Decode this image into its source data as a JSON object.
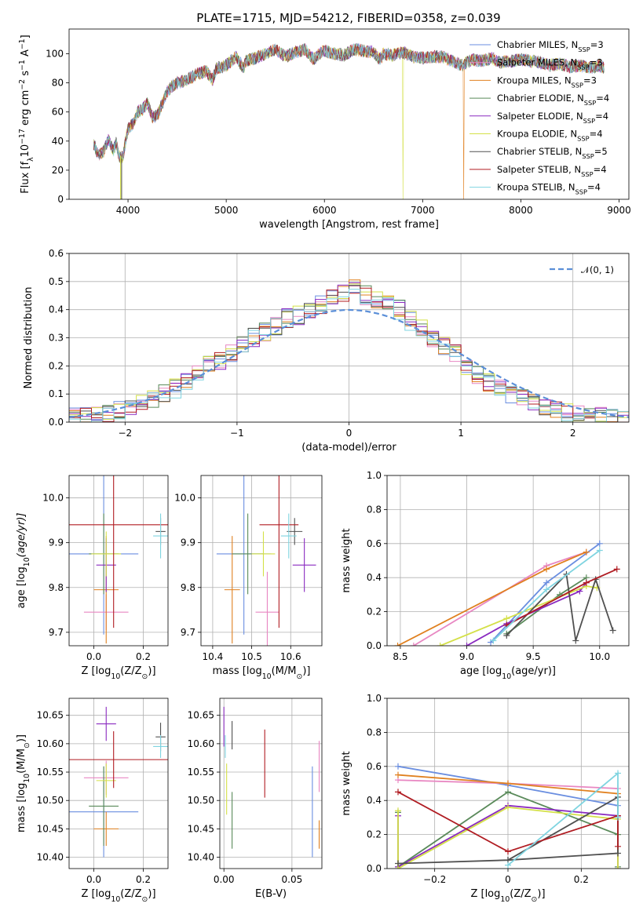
{
  "figure": {
    "title": "PLATE=1715, MJD=54212, FIBERID=0358, z=0.039"
  },
  "colors": {
    "Chabrier MILES": "#6a8ee0",
    "Salpeter MILES": "#e887c2",
    "Kroupa MILES": "#e0801f",
    "Chabrier ELODIE": "#5a8a5a",
    "Salpeter ELODIE": "#8a2ac0",
    "Kroupa ELODIE": "#d4e048",
    "Chabrier STELIB": "#505050",
    "Salpeter STELIB": "#b01c22",
    "Kroupa STELIB": "#7fd4e0"
  },
  "chart_data": [
    {
      "id": "spectrum",
      "type": "line",
      "title": "PLATE=1715, MJD=54212, FIBERID=0358, z=0.039",
      "xlabel": "wavelength [Angstrom, rest frame]",
      "ylabel_parts": [
        "Flux [f",
        "λ",
        "10",
        "−17",
        " erg cm",
        "−2",
        " s",
        "−1",
        " A",
        "−1",
        "]"
      ],
      "xlim": [
        3400,
        9100
      ],
      "ylim": [
        0,
        117
      ],
      "xticks": [
        4000,
        5000,
        6000,
        7000,
        8000,
        9000
      ],
      "yticks": [
        0,
        20,
        40,
        60,
        80,
        100
      ],
      "legend_position": "upper right",
      "x": [
        3650,
        3700,
        3760,
        3800,
        3850,
        3880,
        3900,
        3920,
        3950,
        3980,
        4000,
        4050,
        4100,
        4150,
        4200,
        4250,
        4300,
        4350,
        4400,
        4450,
        4500,
        4600,
        4700,
        4800,
        4860,
        4900,
        5000,
        5100,
        5175,
        5200,
        5300,
        5400,
        5500,
        5600,
        5700,
        5800,
        5890,
        5950,
        6000,
        6100,
        6200,
        6300,
        6400,
        6500,
        6563,
        6600,
        6700,
        6800,
        6900,
        7000,
        7100,
        7200,
        7300,
        7400,
        7500,
        7600,
        7700,
        7800,
        7900,
        8000,
        8100,
        8200,
        8300,
        8400,
        8500,
        8600,
        8700,
        8800,
        8850
      ],
      "y": [
        38,
        30,
        34,
        42,
        33,
        39,
        32,
        28,
        30,
        42,
        48,
        52,
        60,
        62,
        66,
        56,
        58,
        66,
        74,
        78,
        80,
        82,
        86,
        88,
        82,
        90,
        92,
        98,
        90,
        95,
        97,
        100,
        103,
        98,
        101,
        103,
        96,
        100,
        102,
        100,
        99,
        103,
        102,
        101,
        96,
        100,
        99,
        101,
        98,
        97,
        98,
        98,
        95,
        92,
        96,
        95,
        97,
        94,
        95,
        96,
        95,
        94,
        92,
        93,
        91,
        92,
        90,
        92,
        90
      ],
      "series": [
        {
          "name_parts": [
            "Chabrier MILES, N",
            "SSP",
            "=3"
          ],
          "color": "#6a8ee0"
        },
        {
          "name_parts": [
            "Salpeter MILES, N",
            "SSP",
            "=3"
          ],
          "color": "#e887c2"
        },
        {
          "name_parts": [
            "Kroupa MILES, N",
            "SSP",
            "=3"
          ],
          "color": "#e0801f",
          "drop_at": 7420
        },
        {
          "name_parts": [
            "Chabrier ELODIE, N",
            "SSP",
            "=4"
          ],
          "color": "#5a8a5a"
        },
        {
          "name_parts": [
            "Salpeter ELODIE, N",
            "SSP",
            "=4"
          ],
          "color": "#8a2ac0"
        },
        {
          "name_parts": [
            "Kroupa ELODIE, N",
            "SSP",
            "=4"
          ],
          "color": "#d4e048",
          "drop_at": 6800
        },
        {
          "name_parts": [
            "Chabrier STELIB, N",
            "SSP",
            "=5"
          ],
          "color": "#505050"
        },
        {
          "name_parts": [
            "Salpeter STELIB, N",
            "SSP",
            "=4"
          ],
          "color": "#b01c22"
        },
        {
          "name_parts": [
            "Kroupa STELIB, N",
            "SSP",
            "=4"
          ],
          "color": "#7fd4e0"
        }
      ]
    },
    {
      "id": "residuals",
      "type": "line",
      "xlabel": "(data-model)/error",
      "ylabel": "Normed distribution",
      "xlim": [
        -2.5,
        2.5
      ],
      "ylim": [
        0,
        0.6
      ],
      "xticks": [
        -2,
        -1,
        0,
        1,
        2
      ],
      "yticks": [
        0.0,
        0.1,
        0.2,
        0.3,
        0.4,
        0.5,
        0.6
      ],
      "grid": true,
      "legend_position": "upper right",
      "reference": {
        "name": "𝒩(0, 1)",
        "color": "#5b8fd8",
        "mean": 0,
        "sigma": 1
      },
      "bin_width": 0.1,
      "bin_start": -2.5,
      "hist_values": [
        0.02,
        0.02,
        0.03,
        0.035,
        0.045,
        0.06,
        0.07,
        0.085,
        0.1,
        0.12,
        0.15,
        0.18,
        0.2,
        0.22,
        0.25,
        0.28,
        0.3,
        0.32,
        0.34,
        0.37,
        0.38,
        0.4,
        0.42,
        0.44,
        0.46,
        0.48,
        0.45,
        0.43,
        0.42,
        0.4,
        0.36,
        0.33,
        0.3,
        0.27,
        0.24,
        0.2,
        0.17,
        0.14,
        0.12,
        0.1,
        0.08,
        0.065,
        0.05,
        0.04,
        0.03,
        0.025,
        0.02,
        0.02,
        0.015,
        0.015
      ]
    },
    {
      "id": "age-vs-z",
      "type": "scatter",
      "xlabel_parts": [
        "Z [log",
        "10",
        "(Z/Z",
        "⊙",
        ")]"
      ],
      "ylabel_parts": [
        "age  [log",
        "10",
        "(age/yr)]"
      ],
      "xlim": [
        -0.1,
        0.3
      ],
      "ylim": [
        9.67,
        10.05
      ],
      "xticks": [
        0.0,
        0.2
      ],
      "yticks": [
        9.7,
        9.8,
        9.9,
        10.0
      ],
      "points": [
        {
          "x": 0.04,
          "y": 9.875,
          "xerr": 0.14,
          "yerr": 0.18,
          "color": "#6a8ee0"
        },
        {
          "x": 0.05,
          "y": 9.745,
          "xerr": 0.09,
          "yerr": 0.04,
          "color": "#e887c2"
        },
        {
          "x": 0.05,
          "y": 9.795,
          "xerr": 0.05,
          "yerr": 0.12,
          "color": "#e0801f"
        },
        {
          "x": 0.04,
          "y": 9.875,
          "xerr": 0.06,
          "yerr": 0.09,
          "color": "#5a8a5a"
        },
        {
          "x": 0.05,
          "y": 9.85,
          "xerr": 0.04,
          "yerr": 0.06,
          "color": "#8a2ac0"
        },
        {
          "x": 0.05,
          "y": 9.875,
          "xerr": 0.06,
          "yerr": 0.05,
          "color": "#d4e048"
        },
        {
          "x": 0.27,
          "y": 9.925,
          "xerr": 0.02,
          "yerr": 0.03,
          "color": "#505050"
        },
        {
          "x": 0.08,
          "y": 9.94,
          "xerr": 0.25,
          "yerr": 0.23,
          "color": "#b01c22"
        },
        {
          "x": 0.27,
          "y": 9.915,
          "xerr": 0.03,
          "yerr": 0.05,
          "color": "#7fd4e0"
        }
      ]
    },
    {
      "id": "age-vs-mass",
      "type": "scatter",
      "xlabel_parts": [
        "mass [log",
        "10",
        "(M/M",
        "⊙",
        ")]"
      ],
      "ylabel": "",
      "xlim": [
        10.37,
        10.68
      ],
      "ylim": [
        9.67,
        10.05
      ],
      "xticks": [
        10.4,
        10.5,
        10.6
      ],
      "yticks": [
        9.7,
        9.8,
        9.9,
        10.0
      ],
      "points": [
        {
          "x": 10.48,
          "y": 9.875,
          "xerr": 0.07,
          "yerr": 0.18,
          "color": "#6a8ee0"
        },
        {
          "x": 10.54,
          "y": 9.745,
          "xerr": 0.03,
          "yerr": 0.09,
          "color": "#e887c2"
        },
        {
          "x": 10.45,
          "y": 9.795,
          "xerr": 0.02,
          "yerr": 0.12,
          "color": "#e0801f"
        },
        {
          "x": 10.49,
          "y": 9.875,
          "xerr": 0.04,
          "yerr": 0.09,
          "color": "#5a8a5a"
        },
        {
          "x": 10.635,
          "y": 9.85,
          "xerr": 0.03,
          "yerr": 0.06,
          "color": "#8a2ac0"
        },
        {
          "x": 10.53,
          "y": 9.875,
          "xerr": 0.03,
          "yerr": 0.05,
          "color": "#d4e048"
        },
        {
          "x": 10.61,
          "y": 9.925,
          "xerr": 0.02,
          "yerr": 0.03,
          "color": "#505050"
        },
        {
          "x": 10.57,
          "y": 9.94,
          "xerr": 0.05,
          "yerr": 0.23,
          "color": "#b01c22"
        },
        {
          "x": 10.595,
          "y": 9.915,
          "xerr": 0.02,
          "yerr": 0.05,
          "color": "#7fd4e0"
        }
      ]
    },
    {
      "id": "weight-vs-age",
      "type": "line",
      "xlabel_parts": [
        "age  [log",
        "10",
        "(age/yr)]"
      ],
      "ylabel": "mass weight",
      "xlim": [
        8.4,
        10.22
      ],
      "ylim": [
        0,
        1
      ],
      "xticks": [
        8.5,
        9.0,
        9.5,
        10.0
      ],
      "yticks": [
        0.0,
        0.2,
        0.4,
        0.6,
        0.8,
        1.0
      ],
      "grid": true,
      "series": [
        {
          "color": "#6a8ee0",
          "x": [
            9.18,
            9.6,
            10.0
          ],
          "y": [
            0.02,
            0.37,
            0.6
          ]
        },
        {
          "color": "#e887c2",
          "x": [
            8.6,
            9.6,
            9.9
          ],
          "y": [
            0.0,
            0.47,
            0.55
          ]
        },
        {
          "color": "#e0801f",
          "x": [
            8.48,
            9.6,
            9.9
          ],
          "y": [
            0.0,
            0.45,
            0.55
          ]
        },
        {
          "color": "#5a8a5a",
          "x": [
            9.3,
            9.7,
            9.9
          ],
          "y": [
            0.07,
            0.3,
            0.4
          ]
        },
        {
          "color": "#8a2ac0",
          "x": [
            9.0,
            9.3,
            9.85,
            9.9
          ],
          "y": [
            0.0,
            0.13,
            0.32,
            0.37
          ]
        },
        {
          "color": "#d4e048",
          "x": [
            8.8,
            9.3,
            9.9,
            9.98
          ],
          "y": [
            0.0,
            0.16,
            0.35,
            0.34
          ]
        },
        {
          "color": "#505050",
          "x": [
            9.3,
            9.75,
            9.82,
            9.97,
            10.1
          ],
          "y": [
            0.06,
            0.42,
            0.03,
            0.39,
            0.09
          ]
        },
        {
          "color": "#b01c22",
          "x": [
            9.3,
            9.9,
            10.13
          ],
          "y": [
            0.12,
            0.37,
            0.45
          ]
        },
        {
          "color": "#7fd4e0",
          "x": [
            9.2,
            9.6,
            10.0
          ],
          "y": [
            0.03,
            0.33,
            0.56
          ]
        }
      ]
    },
    {
      "id": "mass-vs-z",
      "type": "scatter",
      "xlabel_parts": [
        "Z [log",
        "10",
        "(Z/Z",
        "⊙",
        ")]"
      ],
      "ylabel_parts": [
        "mass [log",
        "10",
        "(M/M",
        "⊙",
        ")]"
      ],
      "xlim": [
        -0.1,
        0.3
      ],
      "ylim": [
        10.38,
        10.68
      ],
      "xticks": [
        0.0,
        0.2
      ],
      "yticks": [
        10.4,
        10.45,
        10.5,
        10.55,
        10.6,
        10.65
      ],
      "points": [
        {
          "x": 0.04,
          "y": 10.48,
          "xerr": 0.14,
          "yerr": 0.08,
          "color": "#6a8ee0"
        },
        {
          "x": 0.05,
          "y": 10.54,
          "xerr": 0.09,
          "yerr": 0.03,
          "color": "#e887c2"
        },
        {
          "x": 0.05,
          "y": 10.45,
          "xerr": 0.05,
          "yerr": 0.03,
          "color": "#e0801f"
        },
        {
          "x": 0.04,
          "y": 10.49,
          "xerr": 0.06,
          "yerr": 0.07,
          "color": "#5a8a5a"
        },
        {
          "x": 0.05,
          "y": 10.635,
          "xerr": 0.04,
          "yerr": 0.03,
          "color": "#8a2ac0"
        },
        {
          "x": 0.05,
          "y": 10.535,
          "xerr": 0.04,
          "yerr": 0.03,
          "color": "#d4e048"
        },
        {
          "x": 0.27,
          "y": 10.612,
          "xerr": 0.02,
          "yerr": 0.025,
          "color": "#505050"
        },
        {
          "x": 0.08,
          "y": 10.572,
          "xerr": 0.25,
          "yerr": 0.05,
          "color": "#b01c22"
        },
        {
          "x": 0.27,
          "y": 10.595,
          "xerr": 0.03,
          "yerr": 0.02,
          "color": "#7fd4e0"
        }
      ]
    },
    {
      "id": "mass-vs-ebv",
      "type": "scatter",
      "xlabel": "E(B-V)",
      "ylabel": "",
      "xlim": [
        -0.003,
        0.072
      ],
      "ylim": [
        10.38,
        10.68
      ],
      "xticks": [
        0.0,
        0.05
      ],
      "yticks": [
        10.4,
        10.45,
        10.5,
        10.55,
        10.6,
        10.65
      ],
      "points": [
        {
          "x": 0.065,
          "y": 10.48,
          "xerr": 0,
          "yerr": 0.08,
          "color": "#6a8ee0"
        },
        {
          "x": 0.07,
          "y": 10.56,
          "xerr": 0,
          "yerr": 0.045,
          "color": "#e887c2"
        },
        {
          "x": 0.07,
          "y": 10.44,
          "xerr": 0,
          "yerr": 0.025,
          "color": "#e0801f"
        },
        {
          "x": 0.006,
          "y": 10.465,
          "xerr": 0,
          "yerr": 0.05,
          "color": "#5a8a5a"
        },
        {
          "x": 0.0,
          "y": 10.63,
          "xerr": 0,
          "yerr": 0.035,
          "color": "#8a2ac0"
        },
        {
          "x": 0.002,
          "y": 10.52,
          "xerr": 0,
          "yerr": 0.045,
          "color": "#d4e048"
        },
        {
          "x": 0.006,
          "y": 10.615,
          "xerr": 0,
          "yerr": 0.025,
          "color": "#505050"
        },
        {
          "x": 0.03,
          "y": 10.565,
          "xerr": 0,
          "yerr": 0.06,
          "color": "#b01c22"
        },
        {
          "x": 0.001,
          "y": 10.595,
          "xerr": 0,
          "yerr": 0.02,
          "color": "#7fd4e0"
        }
      ]
    },
    {
      "id": "weight-vs-z",
      "type": "line",
      "xlabel_parts": [
        "Z [log",
        "10",
        "(Z/Z",
        "⊙",
        ")]"
      ],
      "ylabel": "mass weight",
      "xlim": [
        -0.33,
        0.33
      ],
      "ylim": [
        0,
        1
      ],
      "xticks": [
        -0.2,
        0.0,
        0.2
      ],
      "yticks": [
        0.0,
        0.2,
        0.4,
        0.6,
        0.8,
        1.0
      ],
      "grid": true,
      "series": [
        {
          "color": "#6a8ee0",
          "x": [
            -0.3,
            0.0,
            0.3
          ],
          "y": [
            0.6,
            0.49,
            0.37
          ]
        },
        {
          "color": "#e887c2",
          "x": [
            -0.3,
            0.0,
            0.3
          ],
          "y": [
            0.52,
            0.5,
            0.47
          ]
        },
        {
          "color": "#e0801f",
          "x": [
            -0.3,
            0.0,
            0.3
          ],
          "y": [
            0.55,
            0.5,
            0.44
          ]
        },
        {
          "color": "#5a8a5a",
          "x": [
            -0.3,
            -0.3,
            0.0,
            0.3,
            0.3
          ],
          "y": [
            0.33,
            0.01,
            0.45,
            0.2,
            0.01
          ]
        },
        {
          "color": "#8a2ac0",
          "x": [
            -0.3,
            -0.3,
            0.0,
            0.3,
            0.3
          ],
          "y": [
            0.31,
            0.01,
            0.37,
            0.31,
            0.0
          ]
        },
        {
          "color": "#d4e048",
          "x": [
            -0.3,
            -0.3,
            0.0,
            0.3,
            0.3
          ],
          "y": [
            0.34,
            0.0,
            0.36,
            0.29,
            0.0
          ]
        },
        {
          "color": "#505050",
          "x": [
            -0.3,
            0.0,
            0.3,
            0.3,
            0.0
          ],
          "y": [
            0.03,
            0.05,
            0.42,
            0.09,
            0.05
          ]
        },
        {
          "color": "#b01c22",
          "x": [
            -0.3,
            0.0,
            0.3,
            0.3
          ],
          "y": [
            0.45,
            0.1,
            0.31,
            0.13
          ]
        },
        {
          "color": "#7fd4e0",
          "x": [
            0.0,
            0.3,
            0.3
          ],
          "y": [
            0.02,
            0.56,
            0.3
          ]
        }
      ]
    }
  ]
}
